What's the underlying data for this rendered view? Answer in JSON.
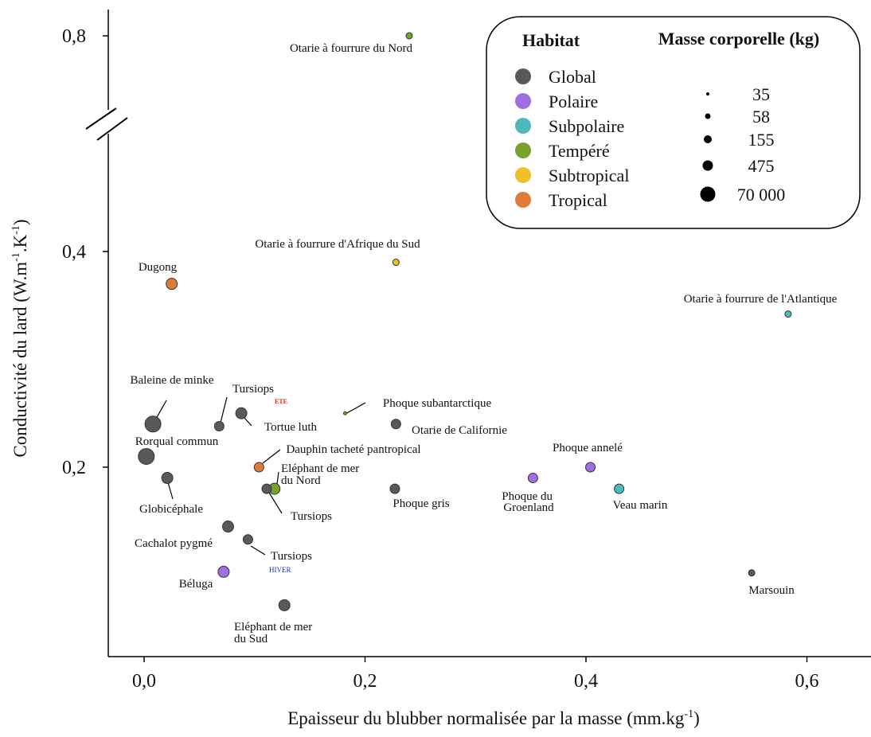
{
  "chart_data": {
    "type": "scatter",
    "xlabel": "Epaisseur du blubber normalisée par la masse (mm.kg",
    "xlabel_sup": "-1",
    "xlabel_end": ")",
    "ylabel": "Conductivité du lard (W.m",
    "ylabel_sup1": "-1",
    "ylabel_mid": ".K",
    "ylabel_sup2": "-1",
    "ylabel_end": ")",
    "xlim": [
      -0.033,
      0.66
    ],
    "ylim": [
      0.025,
      0.83
    ],
    "y_axis_break": "between 0.4 and 0.8",
    "x_ticks": [
      {
        "v": 0,
        "label": "0,0"
      },
      {
        "v": 0.2,
        "label": "0,2"
      },
      {
        "v": 0.4,
        "label": "0,4"
      },
      {
        "v": 0.6,
        "label": "0,6"
      }
    ],
    "y_ticks": [
      {
        "v": 0.2,
        "label": "0,2"
      },
      {
        "v": 0.4,
        "label": "0,4"
      },
      {
        "v": 0.8,
        "label": "0,8"
      }
    ],
    "habitats": [
      {
        "key": "global",
        "name": "Global",
        "color": "#595959"
      },
      {
        "key": "polaire",
        "name": "Polaire",
        "color": "#a16fe4"
      },
      {
        "key": "subpolaire",
        "name": "Subpolaire",
        "color": "#4db8bd"
      },
      {
        "key": "tempere",
        "name": "Tempéré",
        "color": "#79a12c"
      },
      {
        "key": "subtropical",
        "name": "Subtropical",
        "color": "#ecc12a"
      },
      {
        "key": "tropical",
        "name": "Tropical",
        "color": "#e07b39"
      }
    ],
    "mass_sizes": [
      {
        "label": "35",
        "r": 2
      },
      {
        "label": "58",
        "r": 3.5
      },
      {
        "label": "155",
        "r": 5
      },
      {
        "label": "475",
        "r": 6.5
      },
      {
        "label": "70 000",
        "r": 9.5
      }
    ],
    "legend_title_habitat": "Habitat",
    "legend_title_mass": "Masse corporelle (kg)",
    "legend_position": "top-right",
    "points": [
      {
        "name": "Otarie à fourrure du Nord",
        "x": 0.24,
        "y": 0.8,
        "habitat": "tempere",
        "r": 4
      },
      {
        "name": "Otarie à fourrure d'Afrique du Sud",
        "x": 0.228,
        "y": 0.39,
        "habitat": "subtropical",
        "r": 4
      },
      {
        "name": "Dugong",
        "x": 0.025,
        "y": 0.37,
        "habitat": "tropical",
        "r": 7
      },
      {
        "name": "Otarie à fourrure de l'Atlantique",
        "x": 0.583,
        "y": 0.342,
        "habitat": "subpolaire",
        "r": 4
      },
      {
        "name": "Baleine de minke",
        "x": 0.008,
        "y": 0.24,
        "habitat": "global",
        "r": 10
      },
      {
        "name": "Tursiops",
        "x": 0.068,
        "y": 0.238,
        "habitat": "global",
        "r": 6
      },
      {
        "name": "Tortue luth",
        "x": 0.088,
        "y": 0.25,
        "habitat": "global",
        "r": 7
      },
      {
        "name": "Phoque subantarctique",
        "x": 0.182,
        "y": 0.25,
        "habitat": "tempere",
        "r": 2
      },
      {
        "name": "Otarie de Californie",
        "x": 0.228,
        "y": 0.24,
        "habitat": "global",
        "r": 6
      },
      {
        "name": "Rorqual commun",
        "x": 0.002,
        "y": 0.21,
        "habitat": "global",
        "r": 10
      },
      {
        "name": "Dauphin tacheté pantropical",
        "x": 0.104,
        "y": 0.2,
        "habitat": "tropical",
        "r": 6
      },
      {
        "name": "Eléphant de mer du Nord",
        "x": 0.118,
        "y": 0.18,
        "habitat": "tempere",
        "r": 7
      },
      {
        "name": "Tursiops",
        "x": 0.111,
        "y": 0.18,
        "habitat": "global",
        "r": 6
      },
      {
        "name": "Globicéphale",
        "x": 0.021,
        "y": 0.19,
        "habitat": "global",
        "r": 7
      },
      {
        "name": "Phoque gris",
        "x": 0.227,
        "y": 0.18,
        "habitat": "global",
        "r": 6
      },
      {
        "name": "Phoque du Groenland",
        "x": 0.352,
        "y": 0.19,
        "habitat": "polaire",
        "r": 6
      },
      {
        "name": "Phoque annelé",
        "x": 0.404,
        "y": 0.2,
        "habitat": "polaire",
        "r": 6
      },
      {
        "name": "Veau marin",
        "x": 0.43,
        "y": 0.18,
        "habitat": "subpolaire",
        "r": 6
      },
      {
        "name": "Cachalot pygmé",
        "x": 0.076,
        "y": 0.145,
        "habitat": "global",
        "r": 7
      },
      {
        "name": "Tursiops",
        "x": 0.094,
        "y": 0.133,
        "habitat": "global",
        "r": 6
      },
      {
        "name": "Béluga",
        "x": 0.072,
        "y": 0.103,
        "habitat": "polaire",
        "r": 7
      },
      {
        "name": "Marsouin",
        "x": 0.55,
        "y": 0.102,
        "habitat": "global",
        "r": 4
      },
      {
        "name": "Eléphant de mer du Sud",
        "x": 0.127,
        "y": 0.072,
        "habitat": "global",
        "r": 7
      }
    ],
    "annotations": [
      {
        "text": "ETE",
        "color": "#e8231d"
      },
      {
        "text": "HIVER",
        "color": "#1a2fc4"
      }
    ]
  }
}
